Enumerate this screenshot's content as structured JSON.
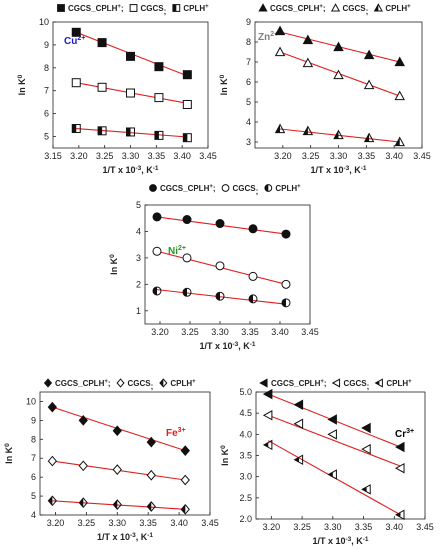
{
  "chart_data": [
    {
      "type": "scatter",
      "ion_label": "Cu",
      "ion_charge": "2+",
      "ion_color": "#1a1ad6",
      "xlabel": "1/T x 10",
      "xlabel_exp": "-3",
      "xlabel_unit": ", K",
      "xlabel_unit_exp": "-1",
      "ylabel": "ln K",
      "ylabel_sup": "0",
      "xlim": [
        3.15,
        3.45
      ],
      "ylim": [
        4.5,
        10
      ],
      "xticks": [
        "3.15",
        "3.20",
        "3.25",
        "3.30",
        "3.35",
        "3.40",
        "3.45"
      ],
      "yticks": [
        "5",
        "6",
        "7",
        "8",
        "9",
        "10"
      ],
      "legend": [
        {
          "name": "CGCS_CPLH",
          "sup": "+",
          "sep": ";",
          "marker": "square-filled"
        },
        {
          "name": "CGCS",
          "sup": "",
          "sep": ";",
          "marker": "square-open"
        },
        {
          "name": "CPLH",
          "sup": "+",
          "sep": "",
          "marker": "square-half"
        }
      ],
      "series": [
        {
          "marker": "square-filled",
          "x": [
            3.195,
            3.245,
            3.3,
            3.355,
            3.41
          ],
          "y": [
            9.55,
            9.1,
            8.5,
            8.05,
            7.7
          ],
          "fit": [
            9.55,
            7.65
          ]
        },
        {
          "marker": "square-open",
          "x": [
            3.195,
            3.245,
            3.3,
            3.355,
            3.41
          ],
          "y": [
            7.35,
            7.15,
            6.9,
            6.7,
            6.4
          ],
          "fit": [
            7.35,
            6.45
          ]
        },
        {
          "marker": "square-half",
          "x": [
            3.195,
            3.245,
            3.3,
            3.355,
            3.41
          ],
          "y": [
            5.35,
            5.25,
            5.2,
            5.05,
            4.95
          ],
          "fit": [
            5.35,
            4.98
          ]
        }
      ]
    },
    {
      "type": "scatter",
      "ion_label": "Zn",
      "ion_charge": "2+",
      "ion_color": "#808080",
      "xlabel": "1/T x 10",
      "xlabel_exp": "-3",
      "xlabel_unit": ", K",
      "xlabel_unit_exp": "-1",
      "ylabel": "ln K",
      "ylabel_sup": "0",
      "xlim": [
        3.15,
        3.45
      ],
      "ylim": [
        2.7,
        9
      ],
      "xticks": [
        "3.20",
        "3.25",
        "3.30",
        "3.35",
        "3.40",
        "3.45"
      ],
      "yticks": [
        "3",
        "4",
        "5",
        "6",
        "7",
        "8",
        "9"
      ],
      "legend": [
        {
          "name": "CGCS_CPLH",
          "sup": "+",
          "sep": ";",
          "marker": "triangle-filled"
        },
        {
          "name": "CGCS",
          "sup": "",
          "sep": ";",
          "marker": "triangle-open"
        },
        {
          "name": "CPLH",
          "sup": "+",
          "sep": "",
          "marker": "triangle-half"
        }
      ],
      "series": [
        {
          "marker": "triangle-filled",
          "x": [
            3.195,
            3.245,
            3.3,
            3.355,
            3.41
          ],
          "y": [
            8.55,
            8.1,
            7.75,
            7.35,
            7.0
          ],
          "fit": [
            8.5,
            7.0
          ]
        },
        {
          "marker": "triangle-open",
          "x": [
            3.195,
            3.245,
            3.3,
            3.355,
            3.41
          ],
          "y": [
            7.5,
            6.95,
            6.35,
            5.85,
            5.3
          ],
          "fit": [
            7.5,
            5.3
          ]
        },
        {
          "marker": "triangle-half",
          "x": [
            3.195,
            3.245,
            3.3,
            3.355,
            3.41
          ],
          "y": [
            3.65,
            3.55,
            3.35,
            3.2,
            3.0
          ],
          "fit": [
            3.65,
            3.0
          ]
        }
      ]
    },
    {
      "type": "scatter",
      "ion_label": "Ni",
      "ion_charge": "2+",
      "ion_color": "#1f9a1f",
      "xlabel": "1/T x 10",
      "xlabel_exp": "-3",
      "xlabel_unit": ", K",
      "xlabel_unit_exp": "-1",
      "ylabel": "ln K",
      "ylabel_sup": "0",
      "xlim": [
        3.175,
        3.45
      ],
      "ylim": [
        0.5,
        5
      ],
      "xticks": [
        "3.20",
        "3.25",
        "3.30",
        "3.35",
        "3.40",
        "3.45"
      ],
      "yticks": [
        "1",
        "2",
        "3",
        "4",
        "5"
      ],
      "legend": [
        {
          "name": "CGCS_CPLH",
          "sup": "+",
          "sep": ";",
          "marker": "circle-filled"
        },
        {
          "name": "CGCS",
          "sup": "",
          "sep": ";",
          "marker": "circle-open"
        },
        {
          "name": "CPLH",
          "sup": "+",
          "sep": "",
          "marker": "circle-half"
        }
      ],
      "series": [
        {
          "marker": "circle-filled",
          "x": [
            3.195,
            3.245,
            3.3,
            3.355,
            3.41
          ],
          "y": [
            4.55,
            4.45,
            4.3,
            4.1,
            3.9
          ],
          "fit": [
            4.55,
            3.9
          ]
        },
        {
          "marker": "circle-open",
          "x": [
            3.195,
            3.245,
            3.3,
            3.355,
            3.41
          ],
          "y": [
            3.25,
            3.0,
            2.7,
            2.3,
            2.0
          ],
          "fit": [
            3.25,
            2.0
          ]
        },
        {
          "marker": "circle-half",
          "x": [
            3.195,
            3.245,
            3.3,
            3.355,
            3.41
          ],
          "y": [
            1.75,
            1.7,
            1.55,
            1.45,
            1.3
          ],
          "fit": [
            1.8,
            1.25
          ]
        }
      ]
    },
    {
      "type": "scatter",
      "ion_label": "Fe",
      "ion_charge": "3+",
      "ion_color": "#d62020",
      "xlabel": "1/T x 10",
      "xlabel_exp": "-3",
      "xlabel_unit": ", K",
      "xlabel_unit_exp": "-1",
      "ylabel": "ln K",
      "ylabel_sup": "0",
      "xlim": [
        3.175,
        3.45
      ],
      "ylim": [
        4,
        10.5
      ],
      "xticks": [
        "3.20",
        "3.25",
        "3.30",
        "3.35",
        "3.40",
        "3.45"
      ],
      "yticks": [
        "4",
        "5",
        "6",
        "7",
        "8",
        "9",
        "10"
      ],
      "legend": [
        {
          "name": "CGCS_CPLH",
          "sup": "+",
          "sep": ";",
          "marker": "diamond-filled"
        },
        {
          "name": "CGCS",
          "sup": "",
          "sep": ";",
          "marker": "diamond-open"
        },
        {
          "name": "CPLH",
          "sup": "+",
          "sep": "",
          "marker": "diamond-half"
        }
      ],
      "series": [
        {
          "marker": "diamond-filled",
          "x": [
            3.195,
            3.245,
            3.3,
            3.355,
            3.41
          ],
          "y": [
            9.7,
            9.0,
            8.45,
            7.85,
            7.4
          ],
          "fit": [
            9.7,
            7.4
          ]
        },
        {
          "marker": "diamond-open",
          "x": [
            3.195,
            3.245,
            3.3,
            3.355,
            3.41
          ],
          "y": [
            6.85,
            6.6,
            6.4,
            6.1,
            5.85
          ],
          "fit": [
            6.85,
            5.85
          ]
        },
        {
          "marker": "diamond-half",
          "x": [
            3.195,
            3.245,
            3.3,
            3.355,
            3.41
          ],
          "y": [
            4.75,
            4.65,
            4.55,
            4.45,
            4.3
          ],
          "fit": [
            4.75,
            4.3
          ]
        }
      ]
    },
    {
      "type": "scatter",
      "ion_label": "Cr",
      "ion_charge": "3+",
      "ion_color": "#000000",
      "xlabel": "1/T x 10",
      "xlabel_exp": "-3",
      "xlabel_unit": ", K",
      "xlabel_unit_exp": "-1",
      "ylabel": "ln K",
      "ylabel_sup": "0",
      "xlim": [
        3.175,
        3.45
      ],
      "ylim": [
        2.0,
        5.0
      ],
      "xticks": [
        "3.20",
        "3.25",
        "3.30",
        "3.35",
        "3.40",
        "3.45"
      ],
      "yticks": [
        "2.0",
        "2.5",
        "3.0",
        "3.5",
        "4.0",
        "4.5",
        "5.0"
      ],
      "legend": [
        {
          "name": "CGCS_CPLH",
          "sup": "+",
          "sep": ";",
          "marker": "tri-left-filled"
        },
        {
          "name": "CGCS",
          "sup": "",
          "sep": ";",
          "marker": "tri-left-open"
        },
        {
          "name": "CPLH",
          "sup": "+",
          "sep": "",
          "marker": "tri-left-half"
        }
      ],
      "series": [
        {
          "marker": "tri-left-filled",
          "x": [
            3.195,
            3.245,
            3.3,
            3.355,
            3.41
          ],
          "y": [
            4.95,
            4.7,
            4.35,
            4.15,
            3.7
          ],
          "fit": [
            4.95,
            3.7
          ]
        },
        {
          "marker": "tri-left-open",
          "x": [
            3.195,
            3.245,
            3.3,
            3.355,
            3.41
          ],
          "y": [
            4.45,
            4.25,
            4.0,
            3.65,
            3.2
          ],
          "fit": [
            4.45,
            3.25
          ]
        },
        {
          "marker": "tri-left-half",
          "x": [
            3.195,
            3.245,
            3.3,
            3.355,
            3.41
          ],
          "y": [
            3.75,
            3.4,
            3.05,
            2.7,
            2.1
          ],
          "fit": [
            3.85,
            2.1
          ]
        }
      ]
    }
  ]
}
